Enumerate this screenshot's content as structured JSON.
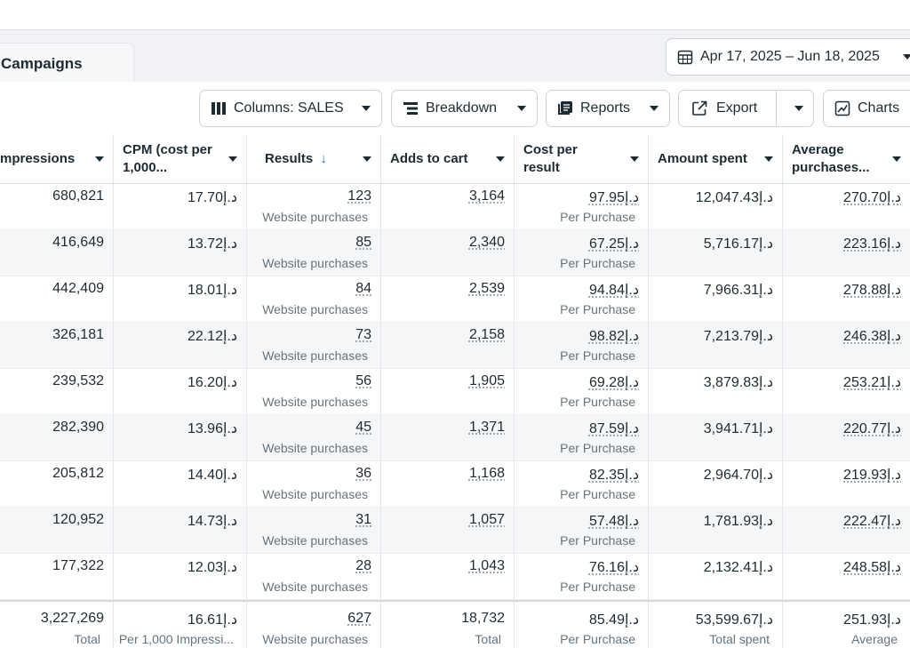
{
  "tab": {
    "label": "Campaigns"
  },
  "date_range": {
    "label": "Apr 17, 2025 – Jun 18, 2025"
  },
  "toolbar": {
    "columns_label": "Columns: SALES",
    "breakdown_label": "Breakdown",
    "reports_label": "Reports",
    "export_label": "Export",
    "charts_label": "Charts"
  },
  "headers": [
    {
      "line1": "mpressions",
      "line2": ""
    },
    {
      "line1": "CPM (cost per",
      "line2": "1,000..."
    },
    {
      "line1": "Results",
      "line2": "",
      "sort": "↓"
    },
    {
      "line1": "Adds to cart",
      "line2": ""
    },
    {
      "line1": "Cost per",
      "line2": "result"
    },
    {
      "line1": "Amount spent",
      "line2": ""
    },
    {
      "line1": "Average",
      "line2": "purchases..."
    }
  ],
  "rows": [
    {
      "impressions": "680,821",
      "cpm": "17.70د.إ",
      "results": "123",
      "results_sub": "Website purchases",
      "adds": "3,164",
      "cpr": "97.95د.إ",
      "cpr_sub": "Per Purchase",
      "spent": "12,047.43د.إ",
      "avg": "270.70د.إ"
    },
    {
      "impressions": "416,649",
      "cpm": "13.72د.إ",
      "results": "85",
      "results_sub": "Website purchases",
      "adds": "2,340",
      "cpr": "67.25د.إ",
      "cpr_sub": "Per Purchase",
      "spent": "5,716.17د.إ",
      "avg": "223.16د.إ"
    },
    {
      "impressions": "442,409",
      "cpm": "18.01د.إ",
      "results": "84",
      "results_sub": "Website purchases",
      "adds": "2,539",
      "cpr": "94.84د.إ",
      "cpr_sub": "Per Purchase",
      "spent": "7,966.31د.إ",
      "avg": "278.88د.إ"
    },
    {
      "impressions": "326,181",
      "cpm": "22.12د.إ",
      "results": "73",
      "results_sub": "Website purchases",
      "adds": "2,158",
      "cpr": "98.82د.إ",
      "cpr_sub": "Per Purchase",
      "spent": "7,213.79د.إ",
      "avg": "246.38د.إ"
    },
    {
      "impressions": "239,532",
      "cpm": "16.20د.إ",
      "results": "56",
      "results_sub": "Website purchases",
      "adds": "1,905",
      "cpr": "69.28د.إ",
      "cpr_sub": "Per Purchase",
      "spent": "3,879.83د.إ",
      "avg": "253.21د.إ"
    },
    {
      "impressions": "282,390",
      "cpm": "13.96د.إ",
      "results": "45",
      "results_sub": "Website purchases",
      "adds": "1,371",
      "cpr": "87.59د.إ",
      "cpr_sub": "Per Purchase",
      "spent": "3,941.71د.إ",
      "avg": "220.77د.إ"
    },
    {
      "impressions": "205,812",
      "cpm": "14.40د.إ",
      "results": "36",
      "results_sub": "Website purchases",
      "adds": "1,168",
      "cpr": "82.35د.إ",
      "cpr_sub": "Per Purchase",
      "spent": "2,964.70د.إ",
      "avg": "219.93د.إ"
    },
    {
      "impressions": "120,952",
      "cpm": "14.73د.إ",
      "results": "31",
      "results_sub": "Website purchases",
      "adds": "1,057",
      "cpr": "57.48د.إ",
      "cpr_sub": "Per Purchase",
      "spent": "1,781.93د.إ",
      "avg": "222.47د.إ"
    },
    {
      "impressions": "177,322",
      "cpm": "12.03د.إ",
      "results": "28",
      "results_sub": "Website purchases",
      "adds": "1,043",
      "cpr": "76.16د.إ",
      "cpr_sub": "Per Purchase",
      "spent": "2,132.41د.إ",
      "avg": "248.58د.إ"
    }
  ],
  "totals": {
    "impressions": "3,227,269",
    "impressions_sub": "Total",
    "cpm": "16.61د.إ",
    "cpm_sub": "Per 1,000 Impressi...",
    "results": "627",
    "results_sub": "Website purchases",
    "adds": "18,732",
    "adds_sub": "Total",
    "cpr": "85.49د.إ",
    "cpr_sub": "Per Purchase",
    "spent": "53,599.67د.إ",
    "spent_sub": "Total spent",
    "avg": "251.93د.إ",
    "avg_sub": "Average"
  },
  "colors": {
    "accent": "#0a78be",
    "text": "#1c2b33",
    "muted": "#65737e",
    "stripe": "#f5f6f8"
  },
  "icons": {
    "date": "calendar-icon",
    "columns": "columns-icon",
    "breakdown": "breakdown-icon",
    "reports": "reports-icon",
    "export": "export-icon",
    "charts": "charts-icon"
  }
}
